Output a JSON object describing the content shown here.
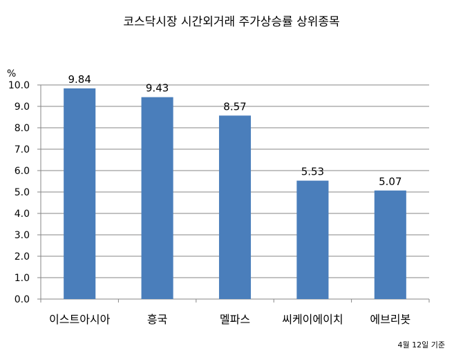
{
  "chart_data": {
    "type": "bar",
    "title": "코스닥시장 시간외거래  주가상승률 상위종목",
    "ylabel": "%",
    "categories": [
      "이스트아시아",
      "흥국",
      "멜파스",
      "씨케이에이치",
      "에브리봇"
    ],
    "values": [
      9.84,
      9.43,
      8.57,
      5.53,
      5.07
    ],
    "data_labels": [
      "9.84",
      "9.43",
      "8.57",
      "5.53",
      "5.07"
    ],
    "ylim": [
      0,
      10
    ],
    "yticks": [
      "0.0",
      "1.0",
      "2.0",
      "3.0",
      "4.0",
      "5.0",
      "6.0",
      "7.0",
      "8.0",
      "9.0",
      "10.0"
    ],
    "grid": true,
    "legend": "none",
    "bar_color": "#4a7ebb",
    "note": "4월 12일 기준"
  }
}
